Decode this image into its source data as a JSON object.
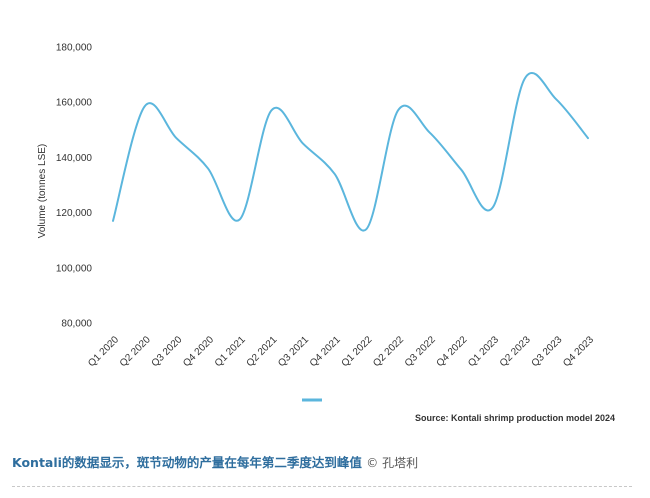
{
  "chart_data": {
    "type": "line",
    "title": "",
    "xlabel": "",
    "ylabel": "Volume (tonnes LSE)",
    "ylim": [
      80000,
      180000
    ],
    "yticks": [
      80000,
      100000,
      120000,
      140000,
      160000,
      180000
    ],
    "ytick_labels": [
      "80,000",
      "100,000",
      "120,000",
      "140,000",
      "160,000",
      "180,000"
    ],
    "categories": [
      "Q1 2020",
      "Q2 2020",
      "Q3 2020",
      "Q4 2020",
      "Q1 2021",
      "Q2 2021",
      "Q3 2021",
      "Q4 2021",
      "Q1 2022",
      "Q2 2022",
      "Q3 2022",
      "Q4 2022",
      "Q1 2023",
      "Q2 2023",
      "Q3 2023",
      "Q4 2023"
    ],
    "series": [
      {
        "name": "",
        "color": "#5bb6dd",
        "values": [
          117000,
          158500,
          147000,
          136000,
          117500,
          157000,
          145000,
          134000,
          114000,
          157000,
          149000,
          135500,
          122000,
          168500,
          161000,
          147000
        ]
      }
    ],
    "grid": false,
    "legend": "bottom-center"
  },
  "source": "Source: Kontali shrimp production model 2024",
  "caption": {
    "text": "Kontali的数据显示，斑节动物的产量在每年第二季度达到峰值",
    "credit": "© 孔塔利"
  }
}
